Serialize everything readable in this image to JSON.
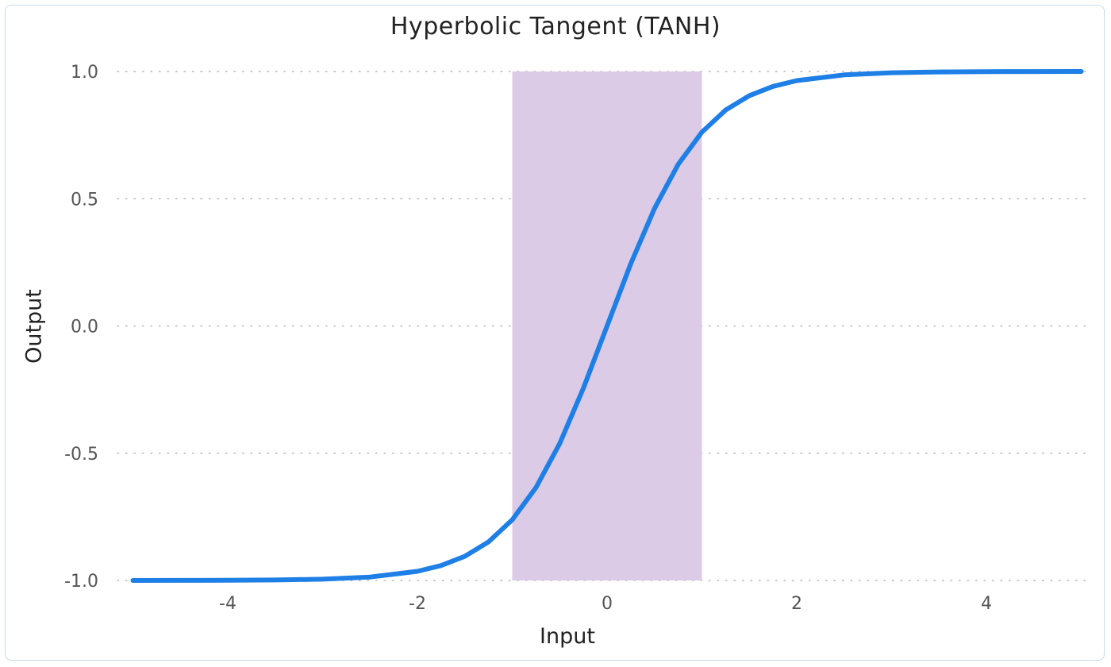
{
  "chart_data": {
    "type": "line",
    "title": "Hyperbolic Tangent (TANH)",
    "xlabel": "Input",
    "ylabel": "Output",
    "xlim": [
      -5,
      5
    ],
    "ylim": [
      -1,
      1
    ],
    "x_ticks": [
      -4,
      -2,
      0,
      2,
      4
    ],
    "x_tick_labels": [
      "-4",
      "-2",
      "0",
      "2",
      "4"
    ],
    "y_ticks": [
      -1,
      -0.5,
      0,
      0.5,
      1
    ],
    "y_tick_labels": [
      "-1.0",
      "-0.5",
      "0.0",
      "0.5",
      "1.0"
    ],
    "grid": "horizontal dotted",
    "shaded_region": {
      "x": [
        -1,
        1
      ],
      "y": [
        -1,
        1
      ],
      "color": "#dccbe6"
    },
    "series": [
      {
        "color": "#1e7fe6",
        "x": [
          -5,
          -4.5,
          -4,
          -3.5,
          -3,
          -2.5,
          -2,
          -1.75,
          -1.5,
          -1.25,
          -1,
          -0.75,
          -0.5,
          -0.25,
          0,
          0.25,
          0.5,
          0.75,
          1,
          1.25,
          1.5,
          1.75,
          2,
          2.5,
          3,
          3.5,
          4,
          4.5,
          5
        ],
        "y": [
          -0.9999,
          -0.9998,
          -0.9993,
          -0.9982,
          -0.9951,
          -0.9866,
          -0.964,
          -0.9414,
          -0.9051,
          -0.8483,
          -0.7616,
          -0.6351,
          -0.4621,
          -0.2449,
          0,
          0.2449,
          0.4621,
          0.6351,
          0.7616,
          0.8483,
          0.9051,
          0.9414,
          0.964,
          0.9866,
          0.9951,
          0.9982,
          0.9993,
          0.9998,
          0.9999
        ]
      }
    ]
  }
}
